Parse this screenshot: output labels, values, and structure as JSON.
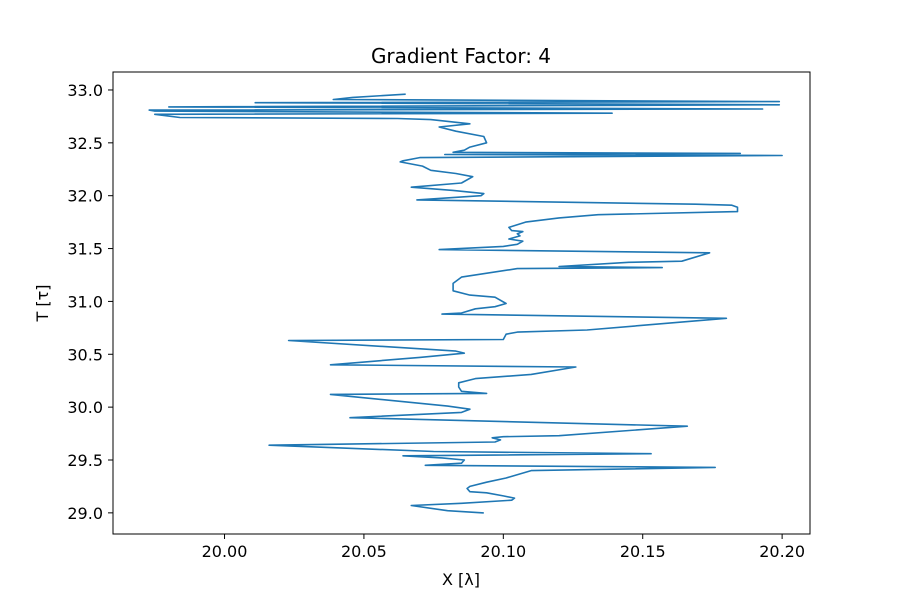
{
  "chart_data": {
    "type": "line",
    "title": "Gradient Factor: 4",
    "xlabel": "X [λ]",
    "ylabel": "T [τ]",
    "xlim": [
      19.96,
      20.21
    ],
    "ylim": [
      28.8,
      33.17
    ],
    "xticks": [
      20.0,
      20.05,
      20.1,
      20.15,
      20.2
    ],
    "xtick_labels": [
      "20.00",
      "20.05",
      "20.10",
      "20.15",
      "20.20"
    ],
    "yticks": [
      29.0,
      29.5,
      30.0,
      30.5,
      31.0,
      31.5,
      32.0,
      32.5,
      33.0
    ],
    "ytick_labels": [
      "29.0",
      "29.5",
      "30.0",
      "30.5",
      "31.0",
      "31.5",
      "32.0",
      "32.5",
      "33.0"
    ],
    "grid": false,
    "color": "#1f77b4",
    "series": [
      {
        "x": [
          20.093,
          20.08,
          20.067,
          20.085,
          20.103,
          20.104,
          20.1,
          20.094,
          20.088,
          20.087,
          20.088,
          20.094,
          20.101,
          20.11,
          20.176,
          20.072,
          20.085,
          20.086,
          20.078,
          20.064,
          20.153,
          20.075,
          20.016,
          20.097,
          20.099,
          20.096,
          20.1,
          20.12,
          20.166,
          20.045,
          20.085,
          20.088,
          20.08,
          20.038,
          20.094,
          20.085,
          20.084,
          20.084,
          20.09,
          20.11,
          20.126,
          20.038,
          20.07,
          20.086,
          20.083,
          20.023,
          20.1,
          20.101,
          20.105,
          20.13,
          20.18,
          20.078,
          20.085,
          20.09,
          20.097,
          20.101,
          20.097,
          20.088,
          20.082,
          20.082,
          20.085,
          20.105,
          20.157,
          20.12,
          20.145,
          20.164,
          20.174,
          20.077,
          20.1,
          20.105,
          20.107,
          20.102,
          20.106,
          20.105,
          20.107,
          20.103,
          20.102,
          20.108,
          20.12,
          20.134,
          20.184,
          20.184,
          20.182,
          20.169,
          20.069,
          20.092,
          20.093,
          20.082,
          20.067,
          20.085,
          20.089,
          20.083,
          20.074,
          20.071,
          20.063,
          20.064,
          20.07,
          20.2,
          20.079,
          20.185,
          20.082,
          20.086,
          20.088,
          20.094,
          20.093,
          20.083,
          20.077,
          20.088,
          20.074,
          20.062,
          19.984,
          19.975,
          20.139,
          19.975,
          19.973,
          20.193,
          19.98,
          20.199,
          20.011,
          20.199,
          20.039,
          20.046,
          20.065
        ],
        "y": [
          29.0,
          29.02,
          29.07,
          29.09,
          29.12,
          29.14,
          29.16,
          29.19,
          29.2,
          29.23,
          29.25,
          29.29,
          29.33,
          29.4,
          29.43,
          29.45,
          29.47,
          29.5,
          29.52,
          29.54,
          29.56,
          29.58,
          29.64,
          29.67,
          29.69,
          29.71,
          29.72,
          29.73,
          29.82,
          29.9,
          29.95,
          29.98,
          30.01,
          30.12,
          30.13,
          30.15,
          30.19,
          30.23,
          30.27,
          30.31,
          30.38,
          30.4,
          30.47,
          30.51,
          30.53,
          30.63,
          30.64,
          30.69,
          30.71,
          30.73,
          30.84,
          30.88,
          30.89,
          30.93,
          30.95,
          30.98,
          31.04,
          31.06,
          31.1,
          31.17,
          31.23,
          31.31,
          31.32,
          31.33,
          31.37,
          31.38,
          31.46,
          31.49,
          31.52,
          31.54,
          31.57,
          31.59,
          31.62,
          31.64,
          31.66,
          31.67,
          31.7,
          31.75,
          31.79,
          31.82,
          31.85,
          31.89,
          31.91,
          31.92,
          31.96,
          32.0,
          32.02,
          32.05,
          32.08,
          32.12,
          32.18,
          32.21,
          32.24,
          32.28,
          32.32,
          32.33,
          32.36,
          32.38,
          32.39,
          32.4,
          32.41,
          32.43,
          32.46,
          32.5,
          32.56,
          32.61,
          32.65,
          32.68,
          32.72,
          32.73,
          32.74,
          32.77,
          32.78,
          32.8,
          32.81,
          32.82,
          32.84,
          32.86,
          32.88,
          32.89,
          32.91,
          32.93,
          32.96
        ]
      }
    ]
  }
}
